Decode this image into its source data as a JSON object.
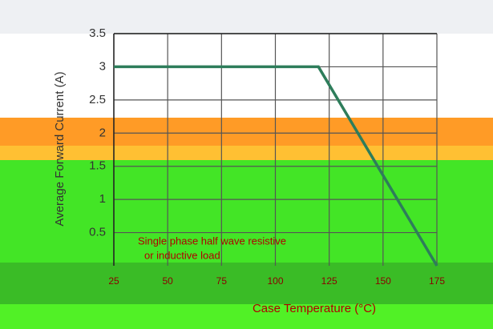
{
  "chart_data": {
    "type": "line",
    "y_label": "Average Forward Current (A)",
    "x_label": "Case Temperature (°C)",
    "annotation": [
      "Single phase half wave resistive",
      "or inductive load"
    ],
    "x": [
      25,
      120,
      175
    ],
    "series": [
      {
        "color": "#2e7d5b",
        "values": [
          3.0,
          3.0,
          0
        ]
      }
    ],
    "xlim": [
      25,
      175
    ],
    "xticks": [
      25,
      50,
      75,
      100,
      125,
      150,
      175
    ],
    "ylim": [
      0,
      3.5
    ],
    "yticks": [
      0.5,
      1.0,
      1.5,
      2.0,
      2.5,
      3.0,
      3.5
    ],
    "grid": true
  }
}
